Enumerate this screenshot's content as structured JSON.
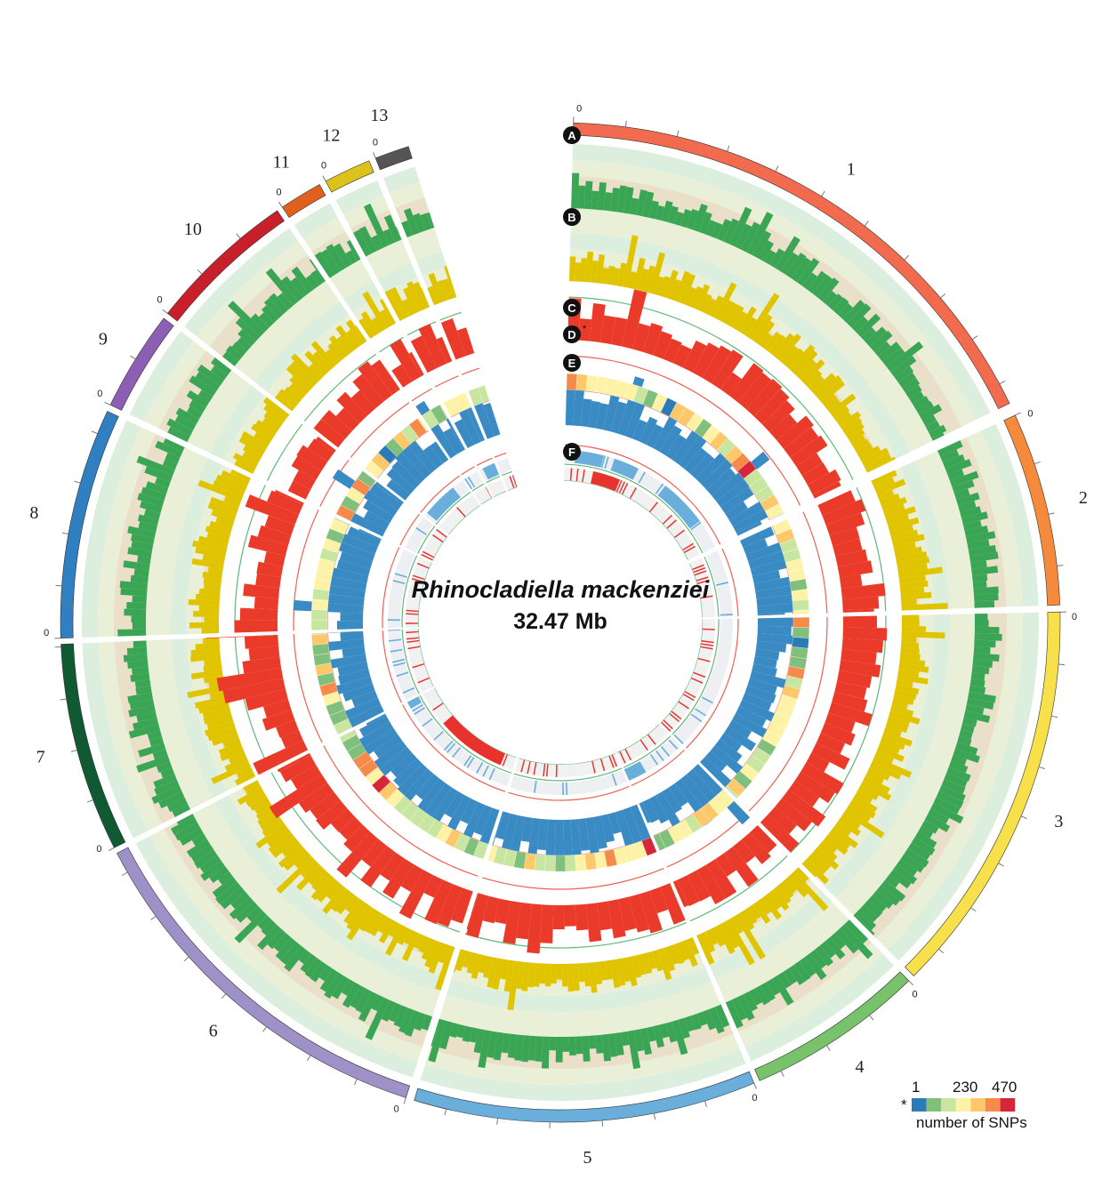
{
  "title": "Rhinocladiella mackenziei",
  "genome_size": "32.47 Mb",
  "chromosomes": [
    {
      "label": "1",
      "color": "#f26b4e"
    },
    {
      "label": "2",
      "color": "#f58a3c"
    },
    {
      "label": "3",
      "color": "#f7e04a"
    },
    {
      "label": "4",
      "color": "#77c26a"
    },
    {
      "label": "5",
      "color": "#6aaedb"
    },
    {
      "label": "6",
      "color": "#9e91c8"
    },
    {
      "label": "7",
      "color": "#0f5a32"
    },
    {
      "label": "8",
      "color": "#2f7fc1"
    },
    {
      "label": "9",
      "color": "#8c5fb5"
    },
    {
      "label": "10",
      "color": "#c8202a"
    },
    {
      "label": "11",
      "color": "#e0601d"
    },
    {
      "label": "12",
      "color": "#dcc21a"
    },
    {
      "label": "13",
      "color": "#555555"
    }
  ],
  "zero_mark": "0",
  "tracks": [
    {
      "id": "A",
      "color": "#3aa655"
    },
    {
      "id": "B",
      "color": "#e0c400"
    },
    {
      "id": "C",
      "color": "#ea3a2a"
    },
    {
      "id": "D",
      "marker": "*"
    },
    {
      "id": "E",
      "color": "#3a8ac4"
    },
    {
      "id": "F",
      "colors": [
        "#6aaedb",
        "#e8322e"
      ]
    }
  ],
  "legend": {
    "marker": "*",
    "tick_labels": [
      "1",
      "230",
      "470"
    ],
    "caption": "number of SNPs",
    "colors": [
      "#2c7bb6",
      "#80c07c",
      "#c8e6a0",
      "#fdf2a6",
      "#fdc86a",
      "#f68a4a",
      "#d7263a"
    ]
  },
  "heatmap_scale": [
    "#2c7bb6",
    "#80c07c",
    "#c8e6a0",
    "#fdf2a6",
    "#fdc86a",
    "#f68a4a",
    "#d7263a"
  ]
}
